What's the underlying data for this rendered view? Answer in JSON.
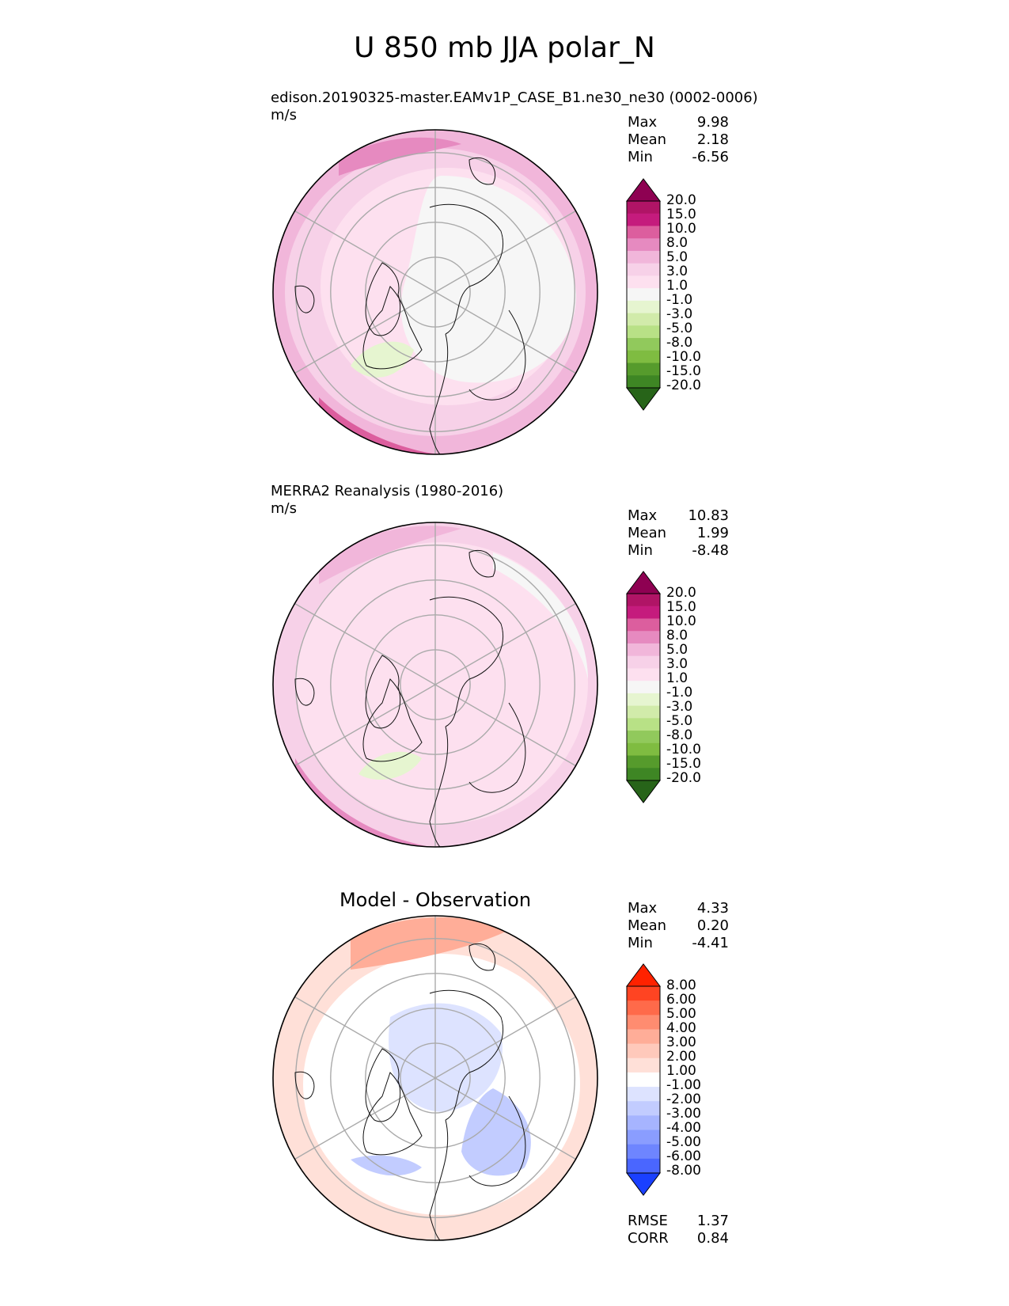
{
  "figure_title": "U 850 mb JJA polar_N",
  "panels": [
    {
      "name": "test",
      "title": "edison.20190325-master.EAMv1P_CASE_B1.ne30_ne30 (0002-0006)",
      "units": "m/s",
      "stats": [
        {
          "label": "Max",
          "value": "9.98"
        },
        {
          "label": "Mean",
          "value": "2.18"
        },
        {
          "label": "Min",
          "value": "-6.56"
        }
      ],
      "colorbar_levels": [
        "20.0",
        "15.0",
        "10.0",
        "8.0",
        "5.0",
        "3.0",
        "1.0",
        "-1.0",
        "-3.0",
        "-5.0",
        "-8.0",
        "-10.0",
        "-15.0",
        "-20.0"
      ]
    },
    {
      "name": "reference",
      "title": "MERRA2 Reanalysis (1980-2016)",
      "units": "m/s",
      "stats": [
        {
          "label": "Max",
          "value": "10.83"
        },
        {
          "label": "Mean",
          "value": "1.99"
        },
        {
          "label": "Min",
          "value": "-8.48"
        }
      ],
      "colorbar_levels": [
        "20.0",
        "15.0",
        "10.0",
        "8.0",
        "5.0",
        "3.0",
        "1.0",
        "-1.0",
        "-3.0",
        "-5.0",
        "-8.0",
        "-10.0",
        "-15.0",
        "-20.0"
      ]
    },
    {
      "name": "difference",
      "title": "Model - Observation",
      "stats": [
        {
          "label": "Max",
          "value": "4.33"
        },
        {
          "label": "Mean",
          "value": "0.20"
        },
        {
          "label": "Min",
          "value": "-4.41"
        }
      ],
      "colorbar_levels": [
        "8.00",
        "6.00",
        "5.00",
        "4.00",
        "3.00",
        "2.00",
        "1.00",
        "-1.00",
        "-2.00",
        "-3.00",
        "-4.00",
        "-5.00",
        "-6.00",
        "-8.00"
      ],
      "extra_stats": [
        {
          "label": "RMSE",
          "value": "1.37"
        },
        {
          "label": "CORR",
          "value": "0.84"
        }
      ]
    }
  ],
  "colors": {
    "field_cmap": [
      "#8e0152",
      "#b01466",
      "#c51b7d",
      "#dc5e9e",
      "#e68ac0",
      "#f1b6da",
      "#f7d1e8",
      "#fde0ef",
      "#f6f6f6",
      "#e6f5d0",
      "#d1ebaa",
      "#b8e186",
      "#91c95c",
      "#7fbc41",
      "#569b2c",
      "#3e8624",
      "#276419"
    ],
    "diff_cmap": [
      "#ff2200",
      "#ff4422",
      "#ff6a4a",
      "#ff8c70",
      "#ffad98",
      "#ffc9bb",
      "#ffe0d8",
      "#ffffff",
      "#dde3ff",
      "#c2ccff",
      "#a6b4ff",
      "#8a9dff",
      "#6e85ff",
      "#4a66ff",
      "#1a40ff"
    ]
  },
  "chart_data": [
    {
      "type": "heatmap",
      "projection": "north-polar-stereographic",
      "title": "edison.20190325-master.EAMv1P_CASE_B1.ne30_ne30 (0002-0006)",
      "units": "m/s",
      "levels": [
        -20,
        -15,
        -10,
        -8,
        -5,
        -3,
        -1,
        1,
        3,
        5,
        8,
        10,
        15,
        20
      ],
      "max": 9.98,
      "mean": 2.18,
      "min": -6.56
    },
    {
      "type": "heatmap",
      "projection": "north-polar-stereographic",
      "title": "MERRA2 Reanalysis (1980-2016)",
      "units": "m/s",
      "levels": [
        -20,
        -15,
        -10,
        -8,
        -5,
        -3,
        -1,
        1,
        3,
        5,
        8,
        10,
        15,
        20
      ],
      "max": 10.83,
      "mean": 1.99,
      "min": -8.48
    },
    {
      "type": "heatmap",
      "projection": "north-polar-stereographic",
      "title": "Model - Observation",
      "levels": [
        -8,
        -6,
        -5,
        -4,
        -3,
        -2,
        -1,
        1,
        2,
        3,
        4,
        5,
        6,
        8
      ],
      "max": 4.33,
      "mean": 0.2,
      "min": -4.41,
      "rmse": 1.37,
      "corr": 0.84
    }
  ]
}
